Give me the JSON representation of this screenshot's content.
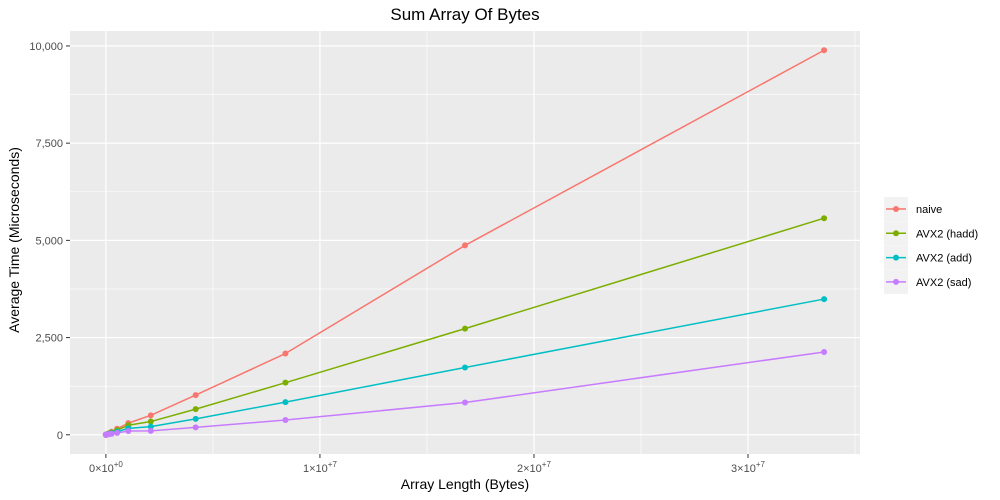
{
  "chart_data": {
    "type": "line",
    "title": "Sum Array Of Bytes",
    "xlabel": "Array Length (Bytes)",
    "ylabel": "Average Time (Microseconds)",
    "x_ticks": [
      {
        "value": 0,
        "mantissa": "0",
        "exponent": "+0"
      },
      {
        "value": 10000000,
        "mantissa": "1",
        "exponent": "+7"
      },
      {
        "value": 20000000,
        "mantissa": "2",
        "exponent": "+7"
      },
      {
        "value": 30000000,
        "mantissa": "3",
        "exponent": "+7"
      }
    ],
    "y_ticks": [
      {
        "value": 0,
        "label": "0"
      },
      {
        "value": 2500,
        "label": "2,500"
      },
      {
        "value": 5000,
        "label": "5,000"
      },
      {
        "value": 7500,
        "label": "7,500"
      },
      {
        "value": 10000,
        "label": "10,000"
      }
    ],
    "xlim": [
      -1677721.6,
      35232153.6
    ],
    "ylim": [
      -494.5,
      10384.5
    ],
    "grid": true,
    "legend_position": "right",
    "background_color": "#ebebeb",
    "grid_color": "#ffffff",
    "x": [
      16,
      32,
      64,
      128,
      256,
      512,
      1024,
      2048,
      4096,
      8192,
      16384,
      32768,
      65536,
      131072,
      262144,
      524288,
      1048576,
      2097152,
      4194304,
      8388608,
      16777216,
      33554432
    ],
    "series": [
      {
        "name": "naive",
        "color": "#f8766d",
        "values": [
          0.005,
          0.01,
          0.02,
          0.04,
          0.08,
          0.15,
          0.3,
          0.6,
          1.2,
          2.4,
          4.8,
          9.7,
          19.4,
          38.7,
          77.4,
          155,
          300,
          500,
          1020,
          2090,
          4870,
          9890
        ]
      },
      {
        "name": "AVX2 (hadd)",
        "color": "#7cae00",
        "values": [
          0.004,
          0.008,
          0.016,
          0.03,
          0.06,
          0.12,
          0.24,
          0.48,
          0.95,
          1.9,
          3.8,
          7.6,
          15.2,
          30.4,
          60.7,
          121,
          245,
          340,
          660,
          1340,
          2730,
          5570
        ]
      },
      {
        "name": "AVX2 (add)",
        "color": "#00bfc4",
        "values": [
          0.003,
          0.005,
          0.01,
          0.02,
          0.04,
          0.08,
          0.16,
          0.32,
          0.64,
          1.3,
          2.6,
          5.1,
          10.2,
          20.4,
          40.8,
          81.5,
          165,
          210,
          410,
          840,
          1730,
          3490
        ]
      },
      {
        "name": "AVX2 (sad)",
        "color": "#c77cff",
        "values": [
          0.002,
          0.003,
          0.006,
          0.012,
          0.024,
          0.047,
          0.094,
          0.19,
          0.38,
          0.75,
          1.5,
          3.0,
          6.0,
          12.0,
          24.0,
          48.0,
          96,
          100,
          190,
          380,
          830,
          2130
        ]
      }
    ]
  }
}
